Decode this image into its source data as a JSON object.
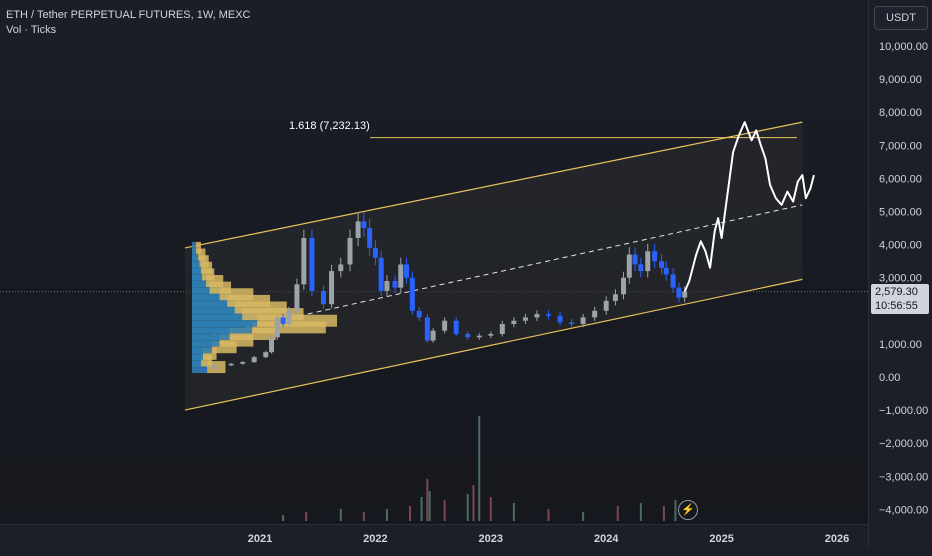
{
  "header": {
    "title": "ETH / Tether PERPETUAL FUTURES, 1W, MEXC",
    "indicator": "Vol · Ticks"
  },
  "price_axis": {
    "currency_button": "USDT",
    "current_price": "2,579.30",
    "countdown": "10:56:55"
  },
  "annotations": {
    "fib_label": "1.618 (7,232.13)",
    "fib_level": 7232.13,
    "replay_icon": "lightning-icon"
  },
  "colors": {
    "background": "#171a21",
    "channel_line": "#e8c45c",
    "channel_fill": "#2b2d30",
    "candle_up": "#9ca3a9",
    "candle_down": "#2962ff",
    "volume_profile_gold": "#d8b863",
    "volume_profile_blue": "#2f7fb3",
    "projection": "#ffffff"
  },
  "chart_data": {
    "type": "line",
    "title": "ETH / Tether PERPETUAL FUTURES, 1W, MEXC",
    "xlabel": "",
    "ylabel": "",
    "ylim": [
      -4200,
      11000
    ],
    "y_ticks": [
      10000,
      9000,
      8000,
      7000,
      6000,
      5000,
      4000,
      3000,
      1000,
      0,
      -1000,
      -2000,
      -3000,
      -4000
    ],
    "y_tick_labels": [
      "10,000.00",
      "9,000.00",
      "8,000.00",
      "7,000.00",
      "6,000.00",
      "5,000.00",
      "4,000.00",
      "3,000.00",
      "1,000.00",
      "0.00",
      "−1,000.00",
      "−2,000.00",
      "−3,000.00",
      "−4,000.00"
    ],
    "x_ticks": [
      "2021",
      "2022",
      "2023",
      "2024",
      "2025",
      "2026"
    ],
    "x_tick_values": [
      2021.0,
      2022.0,
      2023.0,
      2024.0,
      2025.0,
      2026.0
    ],
    "grid": false,
    "series": [
      {
        "kind": "price",
        "x": [
          2020.35,
          2020.5,
          2020.6,
          2020.75,
          2020.85,
          2020.95,
          2021.05,
          2021.1,
          2021.15,
          2021.2,
          2021.25,
          2021.32,
          2021.38,
          2021.45,
          2021.55,
          2021.62,
          2021.7,
          2021.78,
          2021.85,
          2021.9,
          2021.95,
          2022.0,
          2022.05,
          2022.1,
          2022.17,
          2022.22,
          2022.27,
          2022.32,
          2022.38,
          2022.45,
          2022.5,
          2022.6,
          2022.7,
          2022.8,
          2022.9,
          2023.0,
          2023.1,
          2023.2,
          2023.3,
          2023.4,
          2023.5,
          2023.6,
          2023.7,
          2023.8,
          2023.9,
          2024.0,
          2024.08,
          2024.15,
          2024.2,
          2024.25,
          2024.3,
          2024.36,
          2024.42,
          2024.48,
          2024.52,
          2024.58,
          2024.63,
          2024.68
        ],
        "y": [
          250,
          240,
          350,
          400,
          450,
          600,
          750,
          1200,
          1800,
          1600,
          2000,
          2800,
          4200,
          2600,
          2200,
          3200,
          3400,
          4200,
          4700,
          4500,
          3900,
          3600,
          2600,
          2900,
          2700,
          3400,
          3000,
          2000,
          1800,
          1100,
          1400,
          1700,
          1300,
          1200,
          1250,
          1300,
          1600,
          1700,
          1800,
          1900,
          1850,
          1650,
          1600,
          1800,
          2000,
          2300,
          2500,
          3000,
          3700,
          3400,
          3200,
          3800,
          3500,
          3300,
          3100,
          2700,
          2400,
          2579
        ]
      },
      {
        "kind": "projection",
        "x": [
          2024.68,
          2024.72,
          2024.78,
          2024.82,
          2024.86,
          2024.9,
          2024.94,
          2024.97,
          2025.0,
          2025.05,
          2025.1,
          2025.15,
          2025.2,
          2025.26,
          2025.3,
          2025.34,
          2025.38,
          2025.42,
          2025.47,
          2025.52,
          2025.57,
          2025.62,
          2025.66,
          2025.7,
          2025.73,
          2025.77,
          2025.8
        ],
        "y": [
          2579,
          2900,
          3700,
          4100,
          3800,
          3300,
          4400,
          4800,
          4200,
          5500,
          6800,
          7300,
          7700,
          7150,
          7450,
          7000,
          6600,
          5800,
          5400,
          5200,
          5600,
          5300,
          5900,
          6100,
          5400,
          5700,
          6100
        ]
      }
    ],
    "volume_x": [
      2021.2,
      2021.4,
      2021.7,
      2021.9,
      2022.1,
      2022.3,
      2022.4,
      2022.45,
      2022.47,
      2022.6,
      2022.8,
      2022.85,
      2022.9,
      2023.0,
      2023.2,
      2023.5,
      2023.8,
      2024.1,
      2024.3,
      2024.5,
      2024.6
    ],
    "volume_y": [
      2,
      3,
      4,
      3,
      4,
      5,
      8,
      14,
      10,
      7,
      9,
      12,
      35,
      8,
      6,
      4,
      3,
      5,
      6,
      5,
      7
    ],
    "volume_profile": {
      "price_levels": [
        300,
        500,
        700,
        900,
        1100,
        1300,
        1500,
        1700,
        1900,
        2100,
        2300,
        2500,
        2700,
        2900,
        3100,
        3300,
        3500,
        3700,
        3900
      ],
      "volume": [
        30,
        18,
        22,
        40,
        55,
        75,
        120,
        130,
        100,
        85,
        70,
        55,
        35,
        28,
        20,
        18,
        15,
        12,
        8
      ]
    },
    "channel": {
      "upper": {
        "x": [
          2020.35,
          2025.7
        ],
        "y": [
          3900,
          7700
        ]
      },
      "middle": {
        "x": [
          2020.5,
          2025.7
        ],
        "y": [
          1200,
          5200
        ]
      },
      "lower": {
        "x": [
          2020.35,
          2025.7
        ],
        "y": [
          -1000,
          2950
        ]
      }
    }
  }
}
